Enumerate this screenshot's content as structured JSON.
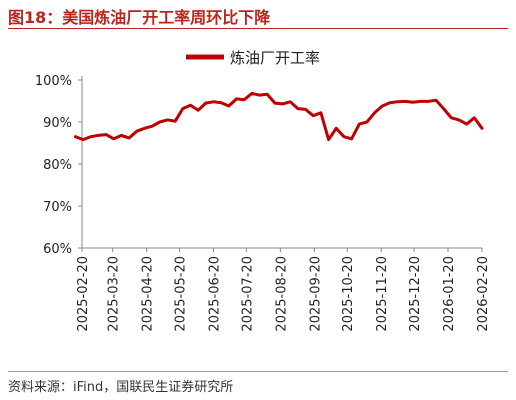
{
  "header": {
    "title": "图18：美国炼油厂开工率周环比下降"
  },
  "footer": {
    "source": "资料来源：iFind，国联民生证券研究所"
  },
  "chart_data": {
    "type": "line",
    "title": "",
    "xlabel": "",
    "ylabel": "",
    "ylim": [
      0.6,
      1.0
    ],
    "yticks": [
      "60%",
      "70%",
      "80%",
      "90%",
      "100%"
    ],
    "xticks": [
      "2025-02-20",
      "2025-03-20",
      "2025-04-20",
      "2025-05-20",
      "2025-06-20",
      "2025-07-20",
      "2025-08-20",
      "2025-09-20",
      "2025-10-20",
      "2025-11-20",
      "2025-12-20",
      "2026-01-20",
      "2026-02-20"
    ],
    "x_range": [
      "2025-02-20",
      "2026-02-20"
    ],
    "legend": {
      "position": "top-center"
    },
    "grid": false,
    "colors": {
      "series": "#c00000",
      "axis": "#888888",
      "title": "#b8261f"
    },
    "series": [
      {
        "name": "炼油厂开工率",
        "x": [
          "2025-02-14",
          "2025-02-21",
          "2025-02-28",
          "2025-03-07",
          "2025-03-14",
          "2025-03-21",
          "2025-03-28",
          "2025-04-04",
          "2025-04-11",
          "2025-04-18",
          "2025-04-25",
          "2025-05-02",
          "2025-05-09",
          "2025-05-16",
          "2025-05-23",
          "2025-05-30",
          "2025-06-06",
          "2025-06-13",
          "2025-06-20",
          "2025-06-27",
          "2025-07-04",
          "2025-07-11",
          "2025-07-18",
          "2025-07-25",
          "2025-08-01",
          "2025-08-08",
          "2025-08-15",
          "2025-08-22",
          "2025-08-29",
          "2025-09-05",
          "2025-09-12",
          "2025-09-19",
          "2025-09-26",
          "2025-10-03",
          "2025-10-10",
          "2025-10-17",
          "2025-10-24",
          "2025-10-31",
          "2025-11-07",
          "2025-11-14",
          "2025-11-21",
          "2025-11-28",
          "2025-12-05",
          "2025-12-12",
          "2025-12-19",
          "2025-12-26",
          "2026-01-02",
          "2026-01-09",
          "2026-01-16",
          "2026-01-23",
          "2026-01-30",
          "2026-02-06",
          "2026-02-13",
          "2026-02-20"
        ],
        "values": [
          0.865,
          0.858,
          0.865,
          0.868,
          0.87,
          0.86,
          0.868,
          0.862,
          0.878,
          0.885,
          0.89,
          0.9,
          0.905,
          0.902,
          0.932,
          0.94,
          0.928,
          0.945,
          0.948,
          0.946,
          0.938,
          0.955,
          0.953,
          0.968,
          0.964,
          0.966,
          0.945,
          0.943,
          0.948,
          0.932,
          0.93,
          0.915,
          0.922,
          0.858,
          0.885,
          0.865,
          0.86,
          0.895,
          0.9,
          0.922,
          0.938,
          0.946,
          0.948,
          0.949,
          0.947,
          0.949,
          0.949,
          0.952,
          0.932,
          0.91,
          0.905,
          0.895,
          0.91,
          0.885
        ]
      }
    ]
  }
}
